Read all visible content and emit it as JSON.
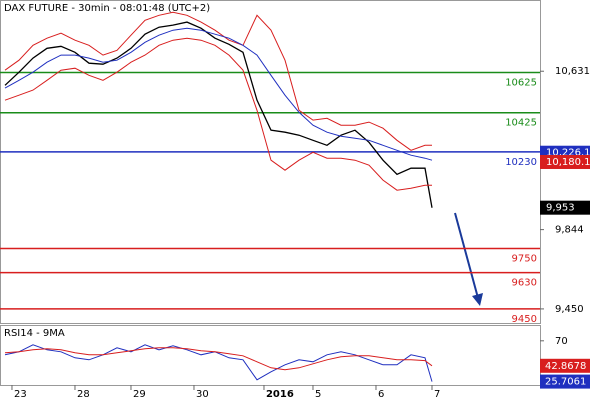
{
  "chart_data": [
    {
      "type": "line",
      "title": "DAX FUTURE - 30min - 08:01:48 (UTC+2)",
      "x": [
        0,
        2,
        4,
        6,
        8,
        10,
        12,
        14,
        16,
        18,
        20,
        22,
        24,
        26,
        28,
        30,
        32,
        34,
        36,
        38,
        40,
        42,
        44,
        46,
        48,
        50,
        52,
        54,
        56,
        58,
        60,
        61
      ],
      "xlim": [
        -0.71,
        76.43
      ],
      "xticks": [
        {
          "value": 1,
          "label": "23"
        },
        {
          "value": 10,
          "label": "28"
        },
        {
          "value": 18,
          "label": "29"
        },
        {
          "value": 27,
          "label": "30"
        },
        {
          "value": 37,
          "label": "2016"
        },
        {
          "value": 44,
          "label": "5"
        },
        {
          "value": 53,
          "label": "6"
        },
        {
          "value": 61,
          "label": "7"
        }
      ],
      "ylim": [
        9380,
        10975
      ],
      "yticks": [
        {
          "value": 10631,
          "label": "10,631"
        },
        {
          "value": 9844,
          "label": "9,844"
        },
        {
          "value": 9450,
          "label": "9,450"
        }
      ],
      "series": [
        {
          "color": "#000000",
          "values": [
            10561,
            10626,
            10696,
            10745,
            10755,
            10725,
            10671,
            10666,
            10696,
            10745,
            10815,
            10850,
            10860,
            10875,
            10845,
            10795,
            10765,
            10725,
            10487,
            10338,
            10328,
            10313,
            10288,
            10263,
            10313,
            10338,
            10278,
            10189,
            10119,
            10149,
            10149,
            9953
          ]
        },
        {
          "color": "#d81e1e",
          "values": [
            10636,
            10686,
            10760,
            10795,
            10820,
            10785,
            10760,
            10711,
            10735,
            10810,
            10884,
            10909,
            10924,
            10909,
            10875,
            10835,
            10785,
            10760,
            10909,
            10835,
            10686,
            10437,
            10388,
            10397,
            10363,
            10363,
            10378,
            10348,
            10288,
            10238,
            10263,
            10263
          ]
        },
        {
          "color": "#d81e1e",
          "values": [
            10487,
            10512,
            10537,
            10586,
            10636,
            10646,
            10611,
            10586,
            10626,
            10676,
            10711,
            10760,
            10785,
            10795,
            10785,
            10760,
            10711,
            10636,
            10437,
            10189,
            10139,
            10189,
            10228,
            10199,
            10199,
            10189,
            10164,
            10090,
            10040,
            10050,
            10064,
            10064
          ]
        },
        {
          "color": "#2030c0",
          "values": [
            10547,
            10586,
            10626,
            10676,
            10711,
            10711,
            10696,
            10676,
            10686,
            10725,
            10775,
            10810,
            10835,
            10845,
            10835,
            10815,
            10795,
            10760,
            10711,
            10611,
            10512,
            10427,
            10363,
            10328,
            10308,
            10298,
            10288,
            10263,
            10238,
            10214,
            10199,
            10189
          ]
        }
      ],
      "levels": [
        {
          "value": 10625,
          "color": "#1a8c1a"
        },
        {
          "value": 10425,
          "color": "#1a8c1a"
        },
        {
          "value": 10230,
          "color": "#1f2fbf"
        },
        {
          "value": 9750,
          "color": "#d81e1e"
        },
        {
          "value": 9630,
          "color": "#d81e1e"
        },
        {
          "value": 9450,
          "color": "#d81e1e"
        }
      ],
      "price_tags": [
        {
          "value": 10226.1,
          "label": "10,226.1",
          "color": "#1f2fbf"
        },
        {
          "value": 10180.1,
          "label": "10,180.1",
          "color": "#d81e1e"
        },
        {
          "value": 9953,
          "label": "9,953",
          "color": "#000000"
        }
      ]
    },
    {
      "type": "line",
      "title": "RSI14 - 9MA",
      "x": [
        0,
        2,
        4,
        6,
        8,
        10,
        12,
        14,
        16,
        18,
        20,
        22,
        24,
        26,
        28,
        30,
        32,
        34,
        36,
        38,
        40,
        42,
        44,
        46,
        48,
        50,
        52,
        54,
        56,
        58,
        60,
        61
      ],
      "ylim": [
        22,
        85
      ],
      "yticks": [
        70
      ],
      "series": [
        {
          "color": "#1f2fbf",
          "values": [
            54.8,
            58.1,
            65.7,
            60.2,
            58.1,
            51.5,
            49.4,
            54.8,
            62.4,
            58.1,
            65.7,
            60.2,
            64.6,
            60.2,
            54.8,
            58.1,
            51.5,
            49.4,
            27.6,
            36.3,
            43.9,
            49.4,
            47.2,
            54.8,
            58.1,
            54.8,
            49.4,
            43.9,
            43.9,
            54.8,
            51.5,
            25.7061
          ]
        },
        {
          "color": "#d81e1e",
          "values": [
            57.0,
            58.1,
            60.2,
            61.3,
            60.2,
            57.0,
            54.8,
            54.8,
            57.0,
            59.1,
            61.3,
            62.4,
            62.4,
            61.3,
            59.1,
            58.1,
            55.9,
            53.7,
            47.2,
            40.7,
            38.5,
            40.7,
            45.0,
            49.4,
            52.6,
            53.7,
            53.7,
            51.5,
            49.4,
            49.4,
            48.5,
            42.8678
          ]
        }
      ]
    }
  ]
}
